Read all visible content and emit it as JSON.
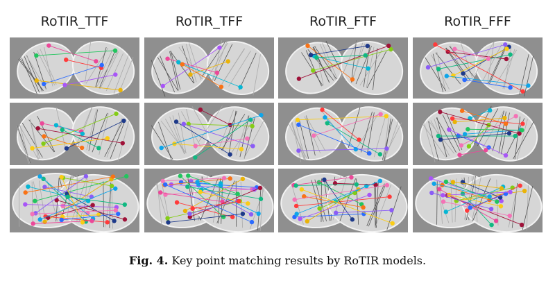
{
  "columns": [
    {
      "title": "RoTIR_TTF"
    },
    {
      "title": "RoTIR_TFF"
    },
    {
      "title": "RoTIR_FTF"
    },
    {
      "title": "RoTIR_FFF"
    }
  ],
  "figure": {
    "label": "Fig. 4.",
    "caption": "Key point matching results by RoTIR models."
  },
  "palette": [
    "#ff3b3b",
    "#2b6bff",
    "#22c55e",
    "#eab308",
    "#a855f7",
    "#ec4899",
    "#06b6d4",
    "#f97316",
    "#84cc16",
    "#1e3a8a",
    "#9f1239",
    "#10b981",
    "#facc15",
    "#8b5cf6",
    "#f472b6",
    "#0ea5e9"
  ],
  "rows": [
    {
      "row": "top",
      "matches_per_panel": [
        6,
        5,
        6,
        9
      ]
    },
    {
      "row": "middle",
      "matches_per_panel": [
        8,
        8,
        7,
        14
      ]
    },
    {
      "row": "bottom",
      "matches_per_panel": [
        22,
        22,
        16,
        18
      ]
    }
  ]
}
